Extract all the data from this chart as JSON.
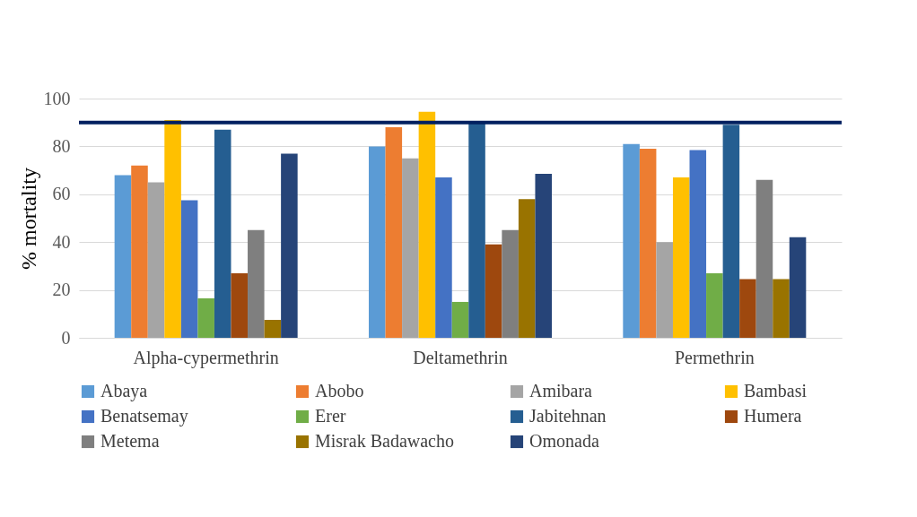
{
  "chart_data": {
    "type": "bar",
    "ylabel": "% mortality",
    "categories": [
      "Alpha-cypermethrin",
      "Deltamethrin",
      "Permethrin"
    ],
    "series": [
      {
        "name": "Abaya",
        "color": "#5b9bd5",
        "values": [
          68,
          80,
          81
        ]
      },
      {
        "name": "Abobo",
        "color": "#ed7d31",
        "values": [
          72,
          88,
          79
        ]
      },
      {
        "name": "Amibara",
        "color": "#a5a5a5",
        "values": [
          65,
          75,
          40
        ]
      },
      {
        "name": "Bambasi",
        "color": "#ffc000",
        "values": [
          91,
          94.5,
          67
        ]
      },
      {
        "name": "Benatsemay",
        "color": "#4472c4",
        "values": [
          57.5,
          67,
          78.5
        ]
      },
      {
        "name": "Erer",
        "color": "#70ad47",
        "values": [
          16.5,
          15,
          27
        ]
      },
      {
        "name": "Jabitehnan",
        "color": "#255e91",
        "values": [
          87,
          90,
          89
        ]
      },
      {
        "name": "Humera",
        "color": "#9e480e",
        "values": [
          27,
          39,
          24.5
        ]
      },
      {
        "name": "Metema",
        "color": "#7f7f7f",
        "values": [
          45,
          45,
          66
        ]
      },
      {
        "name": "Misrak Badawacho",
        "color": "#997300",
        "values": [
          7.5,
          58,
          24.5
        ]
      },
      {
        "name": "Omonada",
        "color": "#264478",
        "values": [
          77,
          68.5,
          42
        ]
      }
    ],
    "ylim": [
      0,
      100
    ],
    "yticks": [
      0,
      20,
      40,
      60,
      80,
      100
    ],
    "grid": "y",
    "legend": "bottom",
    "ref_lines": [
      {
        "axis": "y",
        "value": 90,
        "color": "#002060"
      }
    ]
  }
}
